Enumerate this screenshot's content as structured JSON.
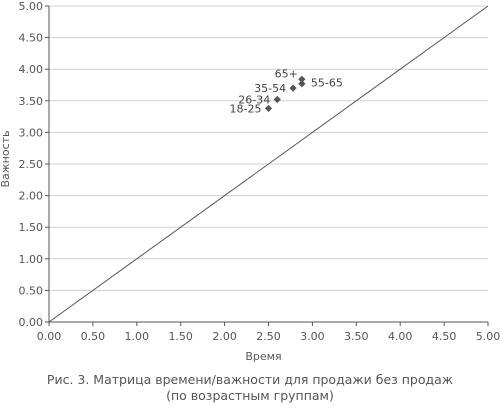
{
  "caption": {
    "line1": "Рис. 3. Матрица времени/важности для продажи без продаж",
    "line2": "(по возрастным группам)"
  },
  "colors": {
    "axis": "#555555",
    "grid": "#d0d0d0",
    "marker": "#555555",
    "diagonal": "#555555"
  },
  "chart_data": {
    "type": "scatter",
    "xlabel": "Время",
    "ylabel": "Важность",
    "xlim": [
      0,
      5
    ],
    "ylim": [
      0,
      5
    ],
    "grid": "horizontal",
    "x_ticks": [
      "0.00",
      "0.50",
      "1.00",
      "1.50",
      "2.00",
      "2.50",
      "3.00",
      "3.50",
      "4.00",
      "4.50",
      "5.00"
    ],
    "y_ticks": [
      "0.00",
      "0.50",
      "1.00",
      "1.50",
      "2.00",
      "2.50",
      "3.00",
      "3.50",
      "4.00",
      "4.50",
      "5.00"
    ],
    "reference_line": {
      "from": [
        0,
        0
      ],
      "to": [
        5,
        5
      ]
    },
    "points": [
      {
        "label": "18-25",
        "x": 2.5,
        "y": 3.38
      },
      {
        "label": "26-34",
        "x": 2.6,
        "y": 3.52
      },
      {
        "label": "35-54",
        "x": 2.78,
        "y": 3.7
      },
      {
        "label": "55-65",
        "x": 2.88,
        "y": 3.77
      },
      {
        "label": "65+",
        "x": 2.88,
        "y": 3.84
      }
    ]
  }
}
